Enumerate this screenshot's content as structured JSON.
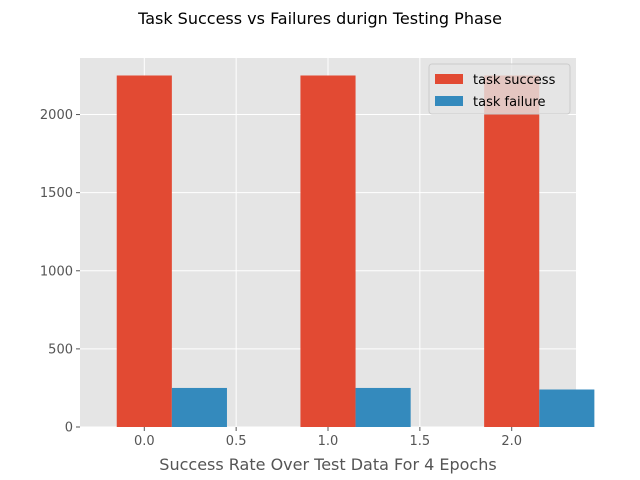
{
  "chart_data": {
    "type": "bar",
    "title": "Task Success vs Failures durign Testing Phase",
    "xlabel": "Success Rate Over Test Data For 4 Epochs",
    "ylabel": "",
    "x": [
      0,
      1,
      2
    ],
    "bar_width": 0.3,
    "xlim": [
      -0.35,
      2.35
    ],
    "ylim": [
      0,
      2362
    ],
    "xticks": [
      0.0,
      0.5,
      1.0,
      1.5,
      2.0
    ],
    "xtick_labels": [
      "0.0",
      "0.5",
      "1.0",
      "1.5",
      "2.0"
    ],
    "yticks": [
      0,
      500,
      1000,
      1500,
      2000
    ],
    "ytick_labels": [
      "0",
      "500",
      "1000",
      "1500",
      "2000"
    ],
    "series": [
      {
        "name": "task success",
        "color": "#E24A33",
        "offset": 0,
        "values": [
          2250,
          2250,
          2250
        ]
      },
      {
        "name": "task failure",
        "color": "#348ABD",
        "offset": 0.3,
        "values": [
          250,
          250,
          240
        ]
      }
    ],
    "grid": true,
    "background": "#E5E5E5",
    "legend": "top-right"
  }
}
